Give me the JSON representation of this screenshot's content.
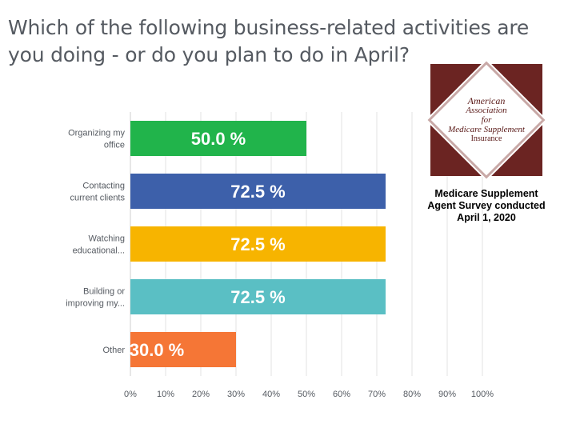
{
  "title": "Which of the following business-related activities are you doing - or do you plan to do in April?",
  "logo": {
    "line1": "American",
    "line2": "Association",
    "line3": "for",
    "line4": "Medicare Supplement",
    "line5": "Insurance",
    "colors": {
      "background": "#6b2422",
      "diamond": "#ffffff"
    }
  },
  "caption": {
    "line1": "Medicare Supplement",
    "line2": "Agent Survey conducted",
    "line3": "April 1, 2020"
  },
  "chart_data": {
    "type": "bar",
    "orientation": "horizontal",
    "title": "",
    "xlabel": "",
    "ylabel": "",
    "xlim": [
      0,
      100
    ],
    "grid": true,
    "categories": [
      "Organizing my office",
      "Contacting current clients",
      "Watching educational...",
      "Building or improving my...",
      "Other"
    ],
    "category_label_lines": [
      [
        "Organizing my",
        "office"
      ],
      [
        "Contacting",
        "current clients"
      ],
      [
        "Watching",
        "educational..."
      ],
      [
        "Building or",
        "improving my..."
      ],
      [
        "Other"
      ]
    ],
    "values": [
      50.0,
      72.5,
      72.5,
      72.5,
      30.0
    ],
    "data_labels": [
      "50.0 %",
      "72.5 %",
      "72.5 %",
      "72.5 %",
      "30.0 %"
    ],
    "colors": [
      "#21b44b",
      "#3d60aa",
      "#f7b400",
      "#5abfc4",
      "#f57636"
    ],
    "ticks": [
      0,
      10,
      20,
      30,
      40,
      50,
      60,
      70,
      80,
      90,
      100
    ],
    "tick_labels": [
      "0%",
      "10%",
      "20%",
      "30%",
      "40%",
      "50%",
      "60%",
      "70%",
      "80%",
      "90%",
      "100%"
    ]
  }
}
